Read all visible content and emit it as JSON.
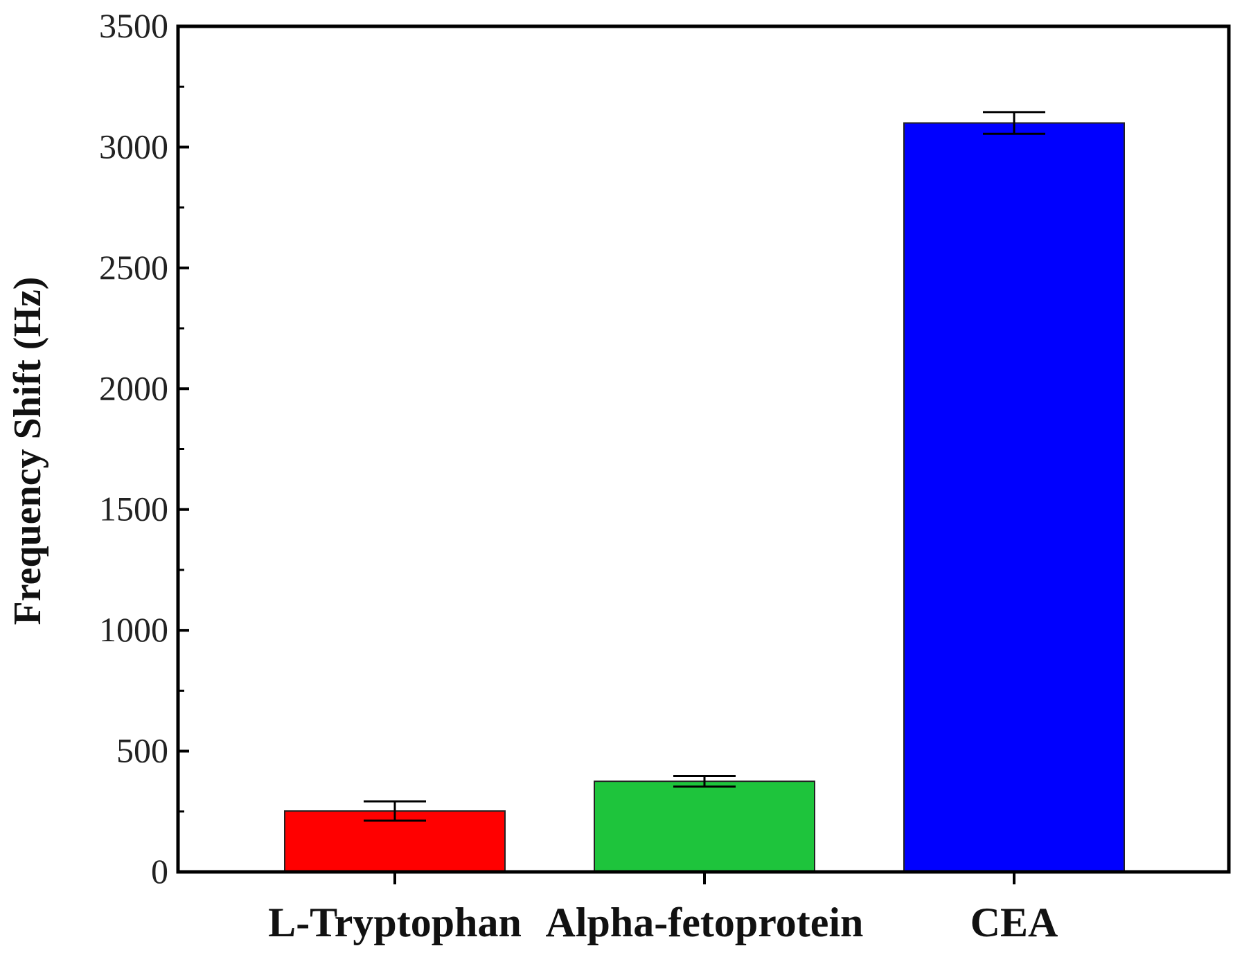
{
  "chart_data": {
    "type": "bar",
    "title": "",
    "xlabel": "",
    "ylabel": "Frequency Shift (Hz)",
    "ylim": [
      0,
      3500
    ],
    "yticks": [
      0,
      500,
      1000,
      1500,
      2000,
      2500,
      3000,
      3500
    ],
    "grid": false,
    "categories": [
      "L-Tryptophan",
      "Alpha-fetoprotein",
      "CEA"
    ],
    "values": [
      252,
      375,
      3100
    ],
    "errors": [
      40,
      22,
      45
    ],
    "colors": [
      "#ff0000",
      "#1ec43c",
      "#0000ff"
    ]
  }
}
